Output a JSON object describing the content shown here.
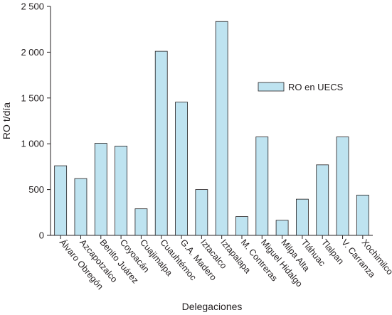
{
  "chart_data": {
    "type": "bar",
    "title": "",
    "xlabel": "Delegaciones",
    "ylabel": "RO t/día",
    "ylim": [
      0,
      2500
    ],
    "yticks": [
      0,
      500,
      1000,
      1500,
      2000,
      2500
    ],
    "ytick_labels": [
      "0",
      "500",
      "1 000",
      "1 500",
      "2 000",
      "2 500"
    ],
    "grid": false,
    "legend_position": "top-right",
    "categories": [
      "Álvaro Obregón",
      "Azcapotzalco",
      "Benito Juárez",
      "Coyoacán",
      "Cuajimalpa",
      "Cuauhtémoc",
      "G.A. Madero",
      "Iztacalco",
      "Iztapalapa",
      "M. Contreras",
      "Miguel Hidalgo",
      "Milpa Alta",
      "Tláhuac",
      "Tlalpan",
      "V. Carranza",
      "Xochimilco"
    ],
    "series": [
      {
        "name": "RO en UECS",
        "color": "#bee3f0",
        "values": [
          760,
          620,
          1005,
          975,
          290,
          2010,
          1455,
          500,
          2335,
          205,
          1075,
          165,
          395,
          770,
          1075,
          440
        ]
      }
    ]
  }
}
